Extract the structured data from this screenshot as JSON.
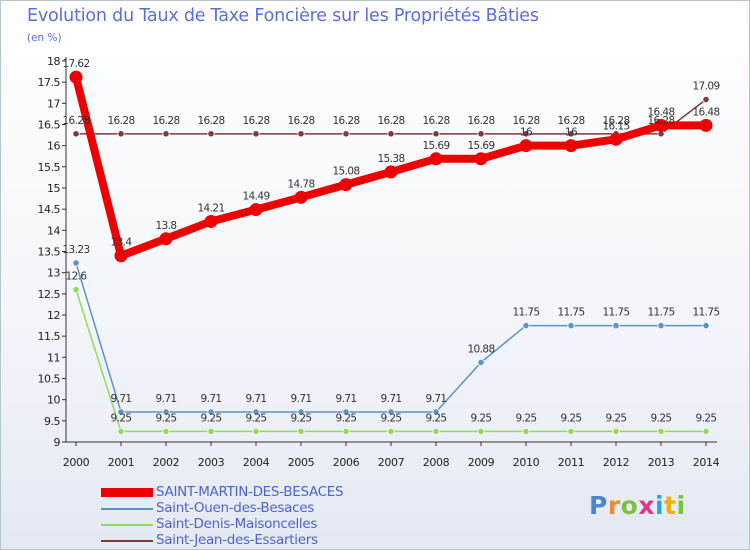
{
  "title": "Evolution du Taux de Taxe Foncière sur les Propriétés Bâties",
  "unit_label": "(en %)",
  "logo": {
    "text": "Proxiti",
    "letters": [
      {
        "ch": "P",
        "color": "#4a86c9"
      },
      {
        "ch": "r",
        "color": "#f08a2c"
      },
      {
        "ch": "o",
        "color": "#7cc143"
      },
      {
        "ch": "x",
        "color": "#e0368a"
      },
      {
        "ch": "i",
        "color": "#2aa5d8"
      },
      {
        "ch": "t",
        "color": "#f3b000"
      },
      {
        "ch": "i",
        "color": "#7cc143"
      }
    ]
  },
  "chart_data": {
    "type": "line",
    "title": "Evolution du Taux de Taxe Foncière sur les Propriétés Bâties",
    "ylabel": "(en %)",
    "xlabel": "",
    "categories": [
      "2000",
      "2001",
      "2002",
      "2003",
      "2004",
      "2005",
      "2006",
      "2007",
      "2008",
      "2009",
      "2010",
      "2011",
      "2012",
      "2013",
      "2014"
    ],
    "ylim": [
      9,
      18
    ],
    "yticks": [
      "9",
      "9.5",
      "10",
      "10.5",
      "11",
      "11.5",
      "12",
      "12.5",
      "13",
      "13.5",
      "14",
      "14.5",
      "15",
      "15.5",
      "16",
      "16.5",
      "17",
      "17.5",
      "18"
    ],
    "grid": false,
    "legend_position": "bottom-left",
    "series": [
      {
        "name": "SAINT-MARTIN-DES-BESACES",
        "color": "#ee0000",
        "emphasis": true,
        "values": [
          17.62,
          13.4,
          13.8,
          14.21,
          14.49,
          14.78,
          15.08,
          15.38,
          15.69,
          15.69,
          16,
          16,
          16.15,
          16.48,
          16.48
        ],
        "labels": [
          "17.62",
          "13.4",
          "13.8",
          "14.21",
          "14.49",
          "14.78",
          "15.08",
          "15.38",
          "15.69",
          "15.69",
          "16",
          "16",
          "16.15",
          "16.48",
          "16.48"
        ]
      },
      {
        "name": "Saint-Ouen-des-Besaces",
        "color": "#5b92c8",
        "values": [
          13.23,
          9.71,
          9.71,
          9.71,
          9.71,
          9.71,
          9.71,
          9.71,
          9.71,
          10.88,
          11.75,
          11.75,
          11.75,
          11.75,
          11.75
        ],
        "labels": [
          "13.23",
          "9.71",
          "9.71",
          "9.71",
          "9.71",
          "9.71",
          "9.71",
          "9.71",
          "9.71",
          "10.88",
          "11.75",
          "11.75",
          "11.75",
          "11.75",
          "11.75"
        ]
      },
      {
        "name": "Saint-Denis-Maisoncelles",
        "color": "#8edb5e",
        "values": [
          12.6,
          9.25,
          9.25,
          9.25,
          9.25,
          9.25,
          9.25,
          9.25,
          9.25,
          9.25,
          9.25,
          9.25,
          9.25,
          9.25,
          9.25
        ],
        "labels": [
          "12.6",
          "9.25",
          "9.25",
          "9.25",
          "9.25",
          "9.25",
          "9.25",
          "9.25",
          "9.25",
          "9.25",
          "9.25",
          "9.25",
          "9.25",
          "9.25",
          "9.25"
        ]
      },
      {
        "name": "Saint-Jean-des-Essartiers",
        "color": "#7a3b3b",
        "values": [
          16.28,
          16.28,
          16.28,
          16.28,
          16.28,
          16.28,
          16.28,
          16.28,
          16.28,
          16.28,
          16.28,
          16.28,
          16.28,
          16.28,
          17.09
        ],
        "labels": [
          "16.28",
          "16.28",
          "16.28",
          "16.28",
          "16.28",
          "16.28",
          "16.28",
          "16.28",
          "16.28",
          "16.28",
          "16.28",
          "16.28",
          "16.28",
          "16.28",
          "17.09"
        ]
      }
    ]
  }
}
